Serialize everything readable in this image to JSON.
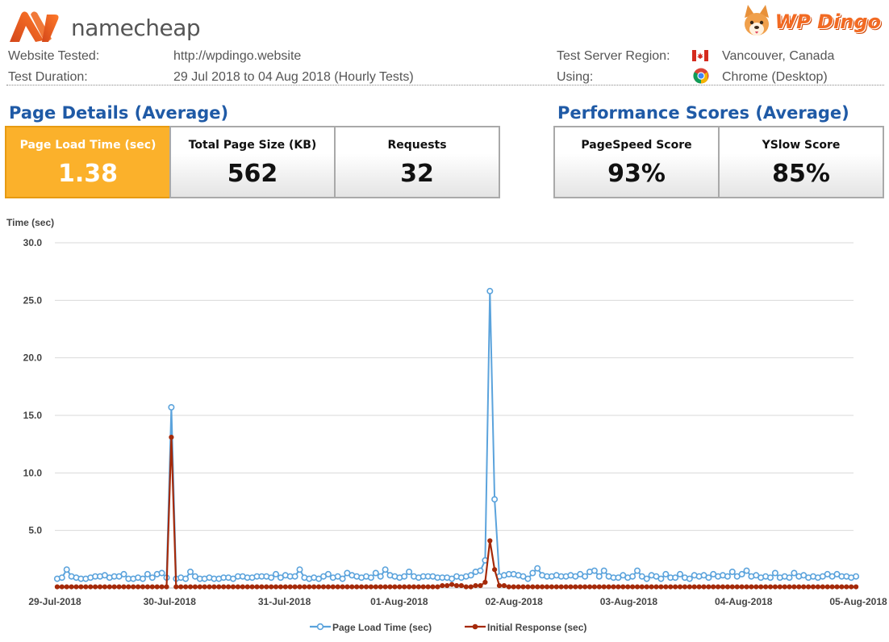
{
  "brand": {
    "name": "namecheap",
    "partner_prefix": "WP",
    "partner_suffix": "Dingo"
  },
  "meta": {
    "website_label": "Website Tested:",
    "website_value": "http://wpdingo.website",
    "duration_label": "Test Duration:",
    "duration_value": "29 Jul 2018 to 04 Aug 2018 (Hourly Tests)",
    "region_label": "Test Server Region:",
    "region_value": "Vancouver, Canada",
    "using_label": "Using:",
    "using_value": "Chrome (Desktop)"
  },
  "page_details": {
    "title": "Page Details (Average)",
    "load_label": "Page Load Time (sec)",
    "load_value": "1.38",
    "size_label": "Total Page Size (KB)",
    "size_value": "562",
    "requests_label": "Requests",
    "requests_value": "32"
  },
  "performance": {
    "title": "Performance Scores (Average)",
    "pagespeed_label": "PageSpeed Score",
    "pagespeed_value": "93%",
    "yslow_label": "YSlow Score",
    "yslow_value": "85%"
  },
  "colors": {
    "accent": "#fbb12b",
    "heading": "#1f5aa6",
    "series1": "#5ba3dc",
    "series2": "#a52a0a"
  },
  "chart_data": {
    "type": "line",
    "ylabel": "Time (sec)",
    "ylim": [
      0,
      30
    ],
    "yticks": [
      "30.0",
      "25.0",
      "20.0",
      "15.0",
      "10.0",
      "5.0"
    ],
    "ytick_values": [
      30,
      25,
      20,
      15,
      10,
      5
    ],
    "xticks": [
      "29-Jul-2018",
      "30-Jul-2018",
      "31-Jul-2018",
      "01-Aug-2018",
      "02-Aug-2018",
      "03-Aug-2018",
      "04-Aug-2018",
      "05-Aug-2018"
    ],
    "xlim_days": [
      0,
      7
    ],
    "grid": true,
    "legend_position": "bottom",
    "series": [
      {
        "name": "Page Load Time (sec)",
        "color": "#5ba3dc",
        "values": [
          0.8,
          0.9,
          1.6,
          1.0,
          0.9,
          0.8,
          0.8,
          0.9,
          1.0,
          1.0,
          1.1,
          0.9,
          1.0,
          1.0,
          1.2,
          0.8,
          0.8,
          0.9,
          0.8,
          1.2,
          0.9,
          1.2,
          1.3,
          0.9,
          15.7,
          0.8,
          0.9,
          0.8,
          1.4,
          1.0,
          0.8,
          0.8,
          0.9,
          0.8,
          0.8,
          0.9,
          0.9,
          0.8,
          1.0,
          1.0,
          0.9,
          0.9,
          1.0,
          1.0,
          1.0,
          0.9,
          1.2,
          0.9,
          1.1,
          1.0,
          1.0,
          1.6,
          0.9,
          0.8,
          0.9,
          0.8,
          1.0,
          1.2,
          0.9,
          1.0,
          0.8,
          1.3,
          1.1,
          1.0,
          0.9,
          1.0,
          0.9,
          1.3,
          1.0,
          1.6,
          1.1,
          1.0,
          0.9,
          1.0,
          1.4,
          1.0,
          0.9,
          1.0,
          1.0,
          1.0,
          0.9,
          0.9,
          0.9,
          0.8,
          1.0,
          0.9,
          1.0,
          1.1,
          1.4,
          1.5,
          2.4,
          25.8,
          7.7,
          1.0,
          1.1,
          1.2,
          1.2,
          1.1,
          1.0,
          0.8,
          1.3,
          1.7,
          1.1,
          1.0,
          1.0,
          1.1,
          1.0,
          1.0,
          1.1,
          1.0,
          1.2,
          1.0,
          1.4,
          1.5,
          1.0,
          1.5,
          1.0,
          0.9,
          0.9,
          1.1,
          0.9,
          1.0,
          1.5,
          1.0,
          0.8,
          1.1,
          1.0,
          0.8,
          1.2,
          0.9,
          0.9,
          1.2,
          0.9,
          0.8,
          1.1,
          1.0,
          1.1,
          0.9,
          1.2,
          1.0,
          1.1,
          1.0,
          1.4,
          1.0,
          1.2,
          1.5,
          1.0,
          1.1,
          0.9,
          1.0,
          0.9,
          1.3,
          0.9,
          1.0,
          0.9,
          1.3,
          1.0,
          1.1,
          0.9,
          1.0,
          0.9,
          1.0,
          1.2,
          1.0,
          1.2,
          1.0,
          1.0,
          0.9,
          1.0
        ]
      },
      {
        "name": "Initial Response (sec)",
        "color": "#a52a0a",
        "values": [
          0.1,
          0.1,
          0.1,
          0.1,
          0.1,
          0.1,
          0.1,
          0.1,
          0.1,
          0.1,
          0.1,
          0.1,
          0.1,
          0.1,
          0.1,
          0.1,
          0.1,
          0.1,
          0.1,
          0.1,
          0.1,
          0.1,
          0.1,
          0.1,
          13.1,
          0.1,
          0.1,
          0.1,
          0.1,
          0.1,
          0.1,
          0.1,
          0.1,
          0.1,
          0.1,
          0.1,
          0.1,
          0.1,
          0.1,
          0.1,
          0.1,
          0.1,
          0.1,
          0.1,
          0.1,
          0.1,
          0.1,
          0.1,
          0.1,
          0.1,
          0.1,
          0.1,
          0.1,
          0.1,
          0.1,
          0.1,
          0.1,
          0.1,
          0.1,
          0.1,
          0.1,
          0.1,
          0.1,
          0.1,
          0.1,
          0.1,
          0.1,
          0.1,
          0.1,
          0.1,
          0.1,
          0.1,
          0.1,
          0.1,
          0.1,
          0.1,
          0.1,
          0.1,
          0.1,
          0.1,
          0.1,
          0.2,
          0.2,
          0.3,
          0.2,
          0.2,
          0.1,
          0.1,
          0.2,
          0.2,
          0.5,
          4.1,
          1.6,
          0.2,
          0.2,
          0.1,
          0.1,
          0.1,
          0.1,
          0.1,
          0.1,
          0.1,
          0.1,
          0.1,
          0.1,
          0.1,
          0.1,
          0.1,
          0.1,
          0.1,
          0.1,
          0.1,
          0.1,
          0.1,
          0.1,
          0.1,
          0.1,
          0.1,
          0.1,
          0.1,
          0.1,
          0.1,
          0.1,
          0.1,
          0.1,
          0.1,
          0.1,
          0.1,
          0.1,
          0.1,
          0.1,
          0.1,
          0.1,
          0.1,
          0.1,
          0.1,
          0.1,
          0.1,
          0.1,
          0.1,
          0.1,
          0.1,
          0.1,
          0.1,
          0.1,
          0.1,
          0.1,
          0.1,
          0.1,
          0.1,
          0.1,
          0.1,
          0.1,
          0.1,
          0.1,
          0.1,
          0.1,
          0.1,
          0.1,
          0.1,
          0.1,
          0.1,
          0.1,
          0.1,
          0.1,
          0.1,
          0.1,
          0.1,
          0.1
        ]
      }
    ]
  }
}
